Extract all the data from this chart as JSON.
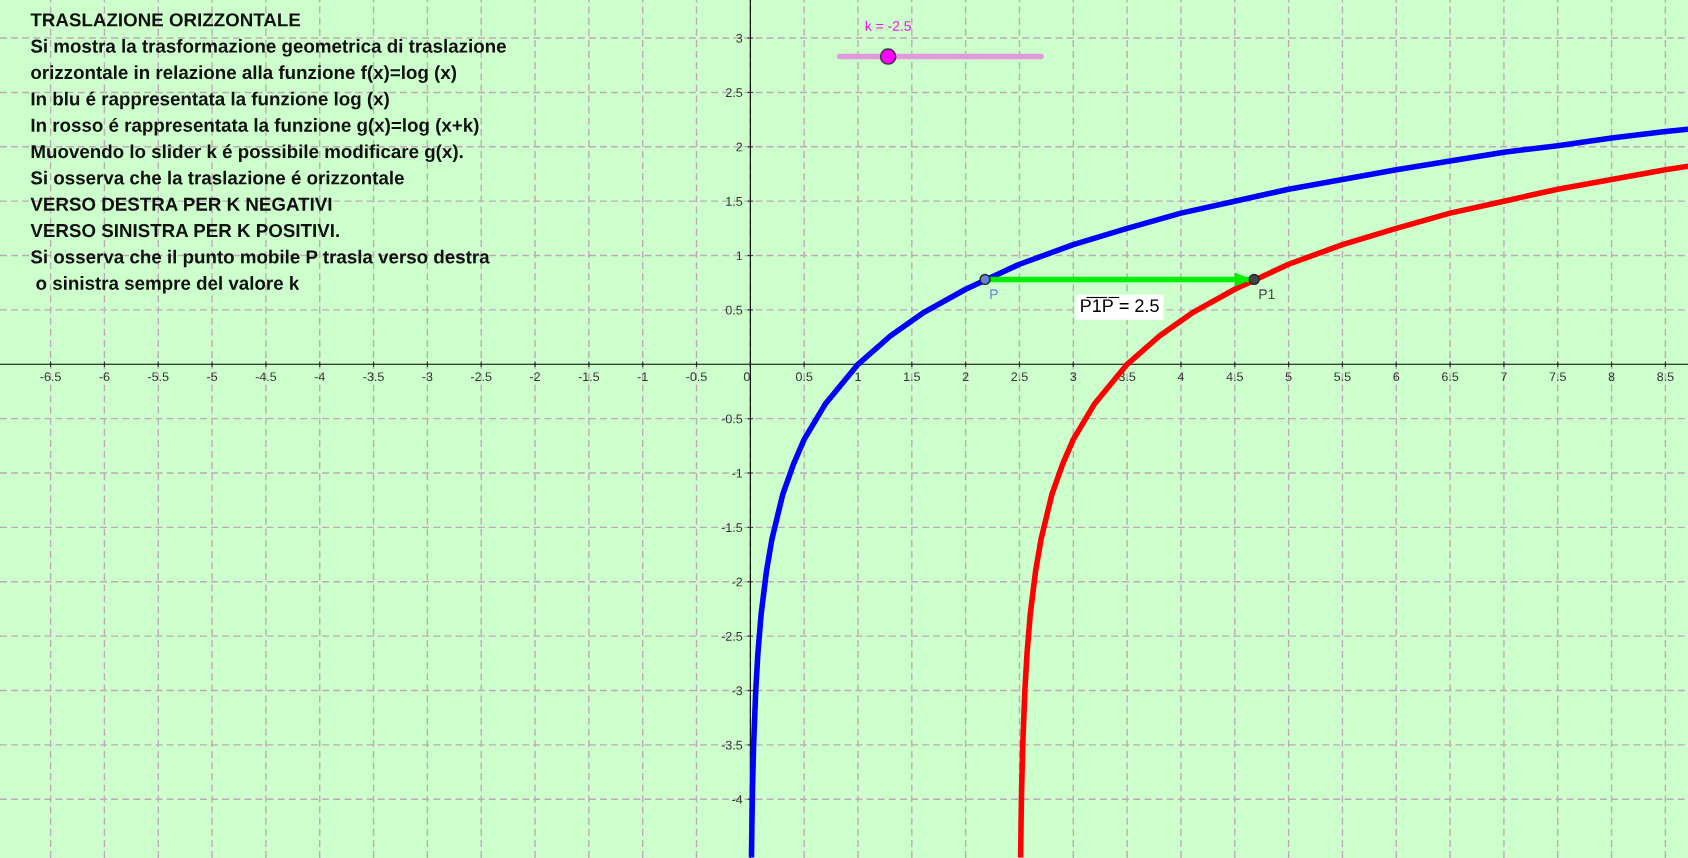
{
  "chart_data": {
    "type": "line",
    "annotations": [
      "TRASLAZIONE ORIZZONTALE",
      "Si mostra la trasformazione geometrica di traslazione",
      "orizzontale in relazione alla funzione f(x)=log (x)",
      "In blu é rappresentata la funzione log (x)",
      "In rosso é rappresentata la funzione g(x)=log (x+k)",
      "Muovendo lo slider k é possibile modificare g(x).",
      "Si osserva che la traslazione é orizzontale",
      "VERSO DESTRA PER K NEGATIVI",
      "VERSO SINISTRA PER K POSITIVI.",
      "Si osserva che il punto mobile P trasla verso destra",
      " o sinistra sempre del valore k",
      "k = -2.5",
      {
        "text": "P̅1̅P̅ = 2.5",
        "x": 3.43,
        "y": 0.78
      }
    ],
    "series": [
      {
        "color": "#0000ff",
        "x": [
          0.011,
          0.015,
          0.02,
          0.03,
          0.05,
          0.07,
          0.1,
          0.15,
          0.2,
          0.3,
          0.4,
          0.5,
          0.7,
          1,
          1.3,
          1.6,
          2,
          2.5,
          3,
          3.5,
          4,
          4.5,
          5,
          5.5,
          6,
          6.5,
          7,
          7.5,
          8,
          8.5,
          8.7
        ],
        "values": [
          -4.51,
          -4.2,
          -3.91,
          -3.51,
          -3.0,
          -2.66,
          -2.3,
          -1.9,
          -1.61,
          -1.2,
          -0.92,
          -0.69,
          -0.36,
          0,
          0.26,
          0.47,
          0.69,
          0.92,
          1.1,
          1.25,
          1.39,
          1.5,
          1.61,
          1.7,
          1.79,
          1.87,
          1.95,
          2.01,
          2.08,
          2.14,
          2.16
        ]
      },
      {
        "color": "#ff0000",
        "x": [
          2.511,
          2.515,
          2.52,
          2.53,
          2.55,
          2.57,
          2.6,
          2.65,
          2.7,
          2.8,
          2.9,
          3,
          3.2,
          3.5,
          3.8,
          4.1,
          4.5,
          5,
          5.5,
          6,
          6.5,
          7,
          7.5,
          8,
          8.5,
          8.7
        ],
        "values": [
          -4.51,
          -4.2,
          -3.91,
          -3.51,
          -3.0,
          -2.66,
          -2.3,
          -1.9,
          -1.61,
          -1.2,
          -0.92,
          -0.69,
          -0.36,
          0,
          0.26,
          0.47,
          0.69,
          0.92,
          1.1,
          1.25,
          1.39,
          1.5,
          1.61,
          1.7,
          1.79,
          1.82
        ]
      },
      {
        "color": "#00ee00",
        "x": [
          2.18,
          4.68
        ],
        "values": [
          0.78,
          0.78
        ]
      },
      {
        "type": "scatter",
        "marker": "circle",
        "name": "P",
        "color": "#6680e0",
        "x": [
          2.18
        ],
        "values": [
          0.78
        ]
      },
      {
        "type": "scatter",
        "marker": "circle",
        "name": "P1",
        "color": "#444444",
        "x": [
          4.68
        ],
        "values": [
          0.78
        ]
      }
    ],
    "xlim": [
      -6.97,
      8.71
    ],
    "ylim": [
      -4.54,
      3.35
    ],
    "xticks": [
      -6.5,
      -6,
      -5.5,
      -5,
      -4.5,
      -4,
      -3.5,
      -3,
      -2.5,
      -2,
      -1.5,
      -1,
      -0.5,
      0,
      0.5,
      1,
      1.5,
      2,
      2.5,
      3,
      3.5,
      4,
      4.5,
      5,
      5.5,
      6,
      6.5,
      7,
      7.5,
      8,
      8.5
    ],
    "yticks": [
      -4,
      -3.5,
      -3,
      -2.5,
      -2,
      -1.5,
      -1,
      -0.5,
      0.5,
      1,
      1.5,
      2,
      2.5,
      3
    ],
    "grid": true,
    "line_style": "solid"
  }
}
